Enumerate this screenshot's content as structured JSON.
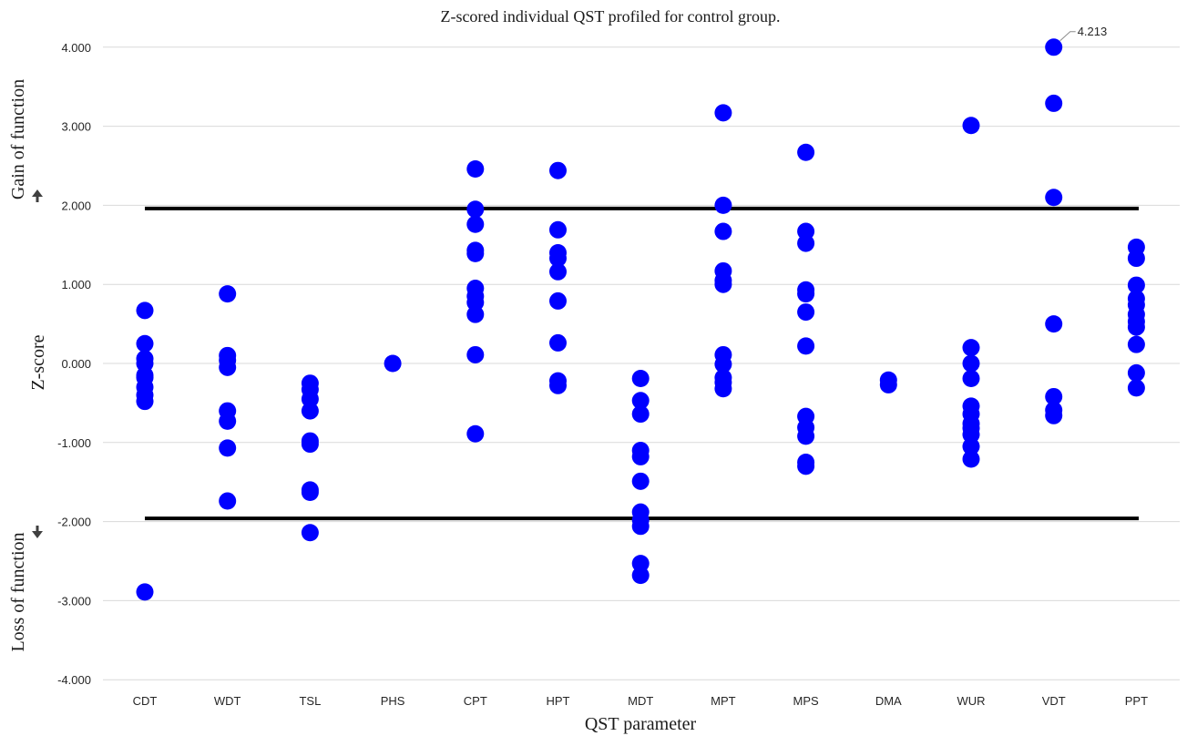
{
  "chart_data": {
    "type": "scatter",
    "title": "Z-scored individual QST profiled for control group.",
    "xlabel": "QST parameter",
    "ylabel": "Z-score",
    "gain_label": "Gain of function",
    "loss_label": "Loss of function",
    "categories": [
      "CDT",
      "WDT",
      "TSL",
      "PHS",
      "CPT",
      "HPT",
      "MDT",
      "MPT",
      "MPS",
      "DMA",
      "WUR",
      "VDT",
      "PPT"
    ],
    "ylim": [
      -4,
      4
    ],
    "yticks": [
      4,
      3,
      2,
      1,
      0,
      -1,
      -2,
      -3,
      -4
    ],
    "ytick_labels": [
      "4.000",
      "3.000",
      "2.000",
      "1.000",
      "0.000",
      "-1.000",
      "-2.000",
      "-3.000",
      "-4.000"
    ],
    "grid": true,
    "thresholds": [
      1.96,
      -1.96
    ],
    "marker_color": "#0000ff",
    "series": [
      {
        "points": [
          {
            "x": "CDT",
            "y": [
              0.67,
              0.25,
              0.06,
              0.0,
              -0.15,
              -0.18,
              -0.3,
              -0.4,
              -0.48,
              -2.89
            ]
          },
          {
            "x": "WDT",
            "y": [
              0.88,
              0.1,
              0.04,
              -0.05,
              -0.6,
              -0.73,
              -1.07,
              -1.74
            ]
          },
          {
            "x": "TSL",
            "y": [
              -0.25,
              -0.33,
              -0.45,
              -0.6,
              -0.98,
              -1.02,
              -1.6,
              -1.63,
              -2.14
            ]
          },
          {
            "x": "PHS",
            "y": [
              0.0
            ]
          },
          {
            "x": "CPT",
            "y": [
              2.46,
              1.95,
              1.76,
              1.43,
              1.39,
              0.95,
              0.85,
              0.77,
              0.62,
              0.11,
              -0.89
            ]
          },
          {
            "x": "HPT",
            "y": [
              2.44,
              1.69,
              1.4,
              1.33,
              1.16,
              0.79,
              0.26,
              -0.22,
              -0.28
            ]
          },
          {
            "x": "MDT",
            "y": [
              -0.19,
              -0.47,
              -0.64,
              -1.1,
              -1.18,
              -1.49,
              -1.88,
              -1.98,
              -2.06,
              -2.53,
              -2.68
            ]
          },
          {
            "x": "MPT",
            "y": [
              3.17,
              2.0,
              1.67,
              1.17,
              1.05,
              1.0,
              0.11,
              -0.01,
              -0.18,
              -0.24,
              -0.32
            ]
          },
          {
            "x": "MPS",
            "y": [
              2.67,
              1.67,
              1.52,
              0.93,
              0.88,
              0.65,
              0.22,
              -0.67,
              -0.81,
              -0.92,
              -1.25,
              -1.3
            ]
          },
          {
            "x": "DMA",
            "y": [
              -0.21,
              -0.27
            ]
          },
          {
            "x": "WUR",
            "y": [
              3.01,
              0.2,
              0.0,
              -0.19,
              -0.54,
              -0.64,
              -0.76,
              -0.82,
              -0.9,
              -1.05,
              -1.21
            ]
          },
          {
            "x": "VDT",
            "y": [
              4.0,
              3.29,
              2.1,
              0.5,
              -0.42,
              -0.59,
              -0.66
            ]
          },
          {
            "x": "PPT",
            "y": [
              1.47,
              1.33,
              0.99,
              0.82,
              0.74,
              0.62,
              0.53,
              0.46,
              0.24,
              -0.12,
              -0.31
            ]
          }
        ]
      }
    ],
    "annotations": [
      {
        "category": "VDT",
        "y": 4.0,
        "text": "4.213"
      }
    ]
  }
}
